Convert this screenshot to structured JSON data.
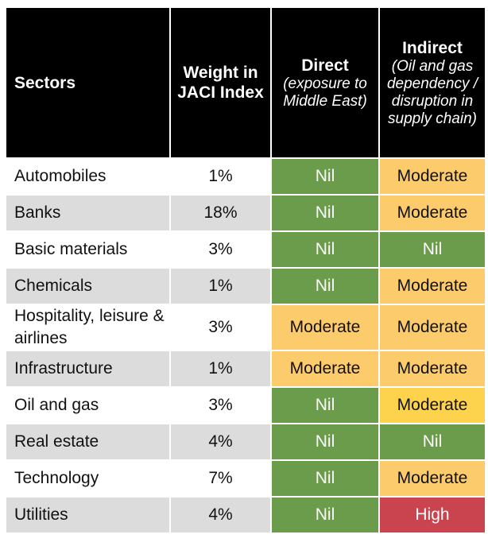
{
  "table": {
    "header": {
      "sectors": "Sectors",
      "weight": "Weight in JACI Index",
      "direct": {
        "title": "Direct",
        "subtitle": "(exposure to Middle East)"
      },
      "indirect": {
        "title": "Indirect",
        "subtitle": "(Oil and gas dependency / disruption in supply chain)"
      }
    },
    "rows": [
      {
        "sector": "Automobiles",
        "weight": "1%",
        "direct": {
          "label": "Nil",
          "color": "#6b9c4b"
        },
        "indirect": {
          "label": "Moderate",
          "color": "#fccb6c"
        }
      },
      {
        "sector": "Banks",
        "weight": "18%",
        "direct": {
          "label": "Nil",
          "color": "#6b9c4b"
        },
        "indirect": {
          "label": "Moderate",
          "color": "#fccb6c"
        }
      },
      {
        "sector": "Basic materials",
        "weight": "3%",
        "direct": {
          "label": "Nil",
          "color": "#6b9c4b"
        },
        "indirect": {
          "label": "Nil",
          "color": "#6b9c4b"
        }
      },
      {
        "sector": "Chemicals",
        "weight": "1%",
        "direct": {
          "label": "Nil",
          "color": "#6b9c4b"
        },
        "indirect": {
          "label": "Moderate",
          "color": "#fccb6c"
        }
      },
      {
        "sector": "Hospitality, leisure & airlines",
        "weight": "3%",
        "direct": {
          "label": "Moderate",
          "color": "#fccb6c"
        },
        "indirect": {
          "label": "Moderate",
          "color": "#fccb6c"
        }
      },
      {
        "sector": "Infrastructure",
        "weight": "1%",
        "direct": {
          "label": "Moderate",
          "color": "#fccb6c"
        },
        "indirect": {
          "label": "Moderate",
          "color": "#fccb6c"
        }
      },
      {
        "sector": "Oil and gas",
        "weight": "3%",
        "direct": {
          "label": "Nil",
          "color": "#6b9c4b"
        },
        "indirect": {
          "label": "Moderate",
          "color": "#fdd24c"
        }
      },
      {
        "sector": "Real estate",
        "weight": "4%",
        "direct": {
          "label": "Nil",
          "color": "#6b9c4b"
        },
        "indirect": {
          "label": "Nil",
          "color": "#6b9c4b"
        }
      },
      {
        "sector": "Technology",
        "weight": "7%",
        "direct": {
          "label": "Nil",
          "color": "#6b9c4b"
        },
        "indirect": {
          "label": "Moderate",
          "color": "#fccb6c"
        }
      },
      {
        "sector": "Utilities",
        "weight": "4%",
        "direct": {
          "label": "Nil",
          "color": "#6b9c4b"
        },
        "indirect": {
          "label": "High",
          "color": "#c9444f"
        }
      }
    ]
  }
}
